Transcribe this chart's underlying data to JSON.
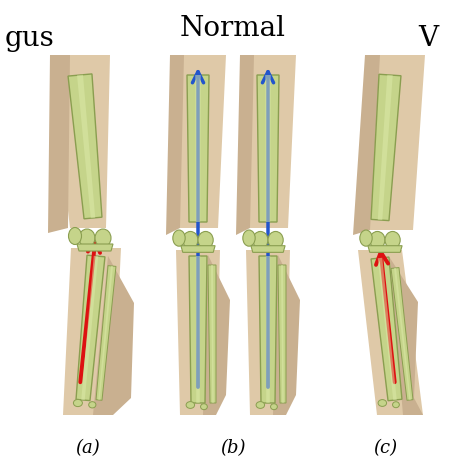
{
  "background_color": "#ffffff",
  "skin_color": "#dfc9a8",
  "skin_shadow": "#c9b090",
  "bone_color": "#c5d48a",
  "bone_outline": "#8a9e50",
  "bone_highlight": "#ddeaaa",
  "arrow_red": "#dd1111",
  "arrow_blue": "#2255cc",
  "fig_width": 4.74,
  "fig_height": 4.74,
  "dpi": 100,
  "label_top_left": "gus",
  "label_top_center": "Normal",
  "label_top_right": "V",
  "label_a": "(a)",
  "label_b": "(b)",
  "label_c": "(c)",
  "title_fontsize": 20,
  "label_fontsize": 13
}
